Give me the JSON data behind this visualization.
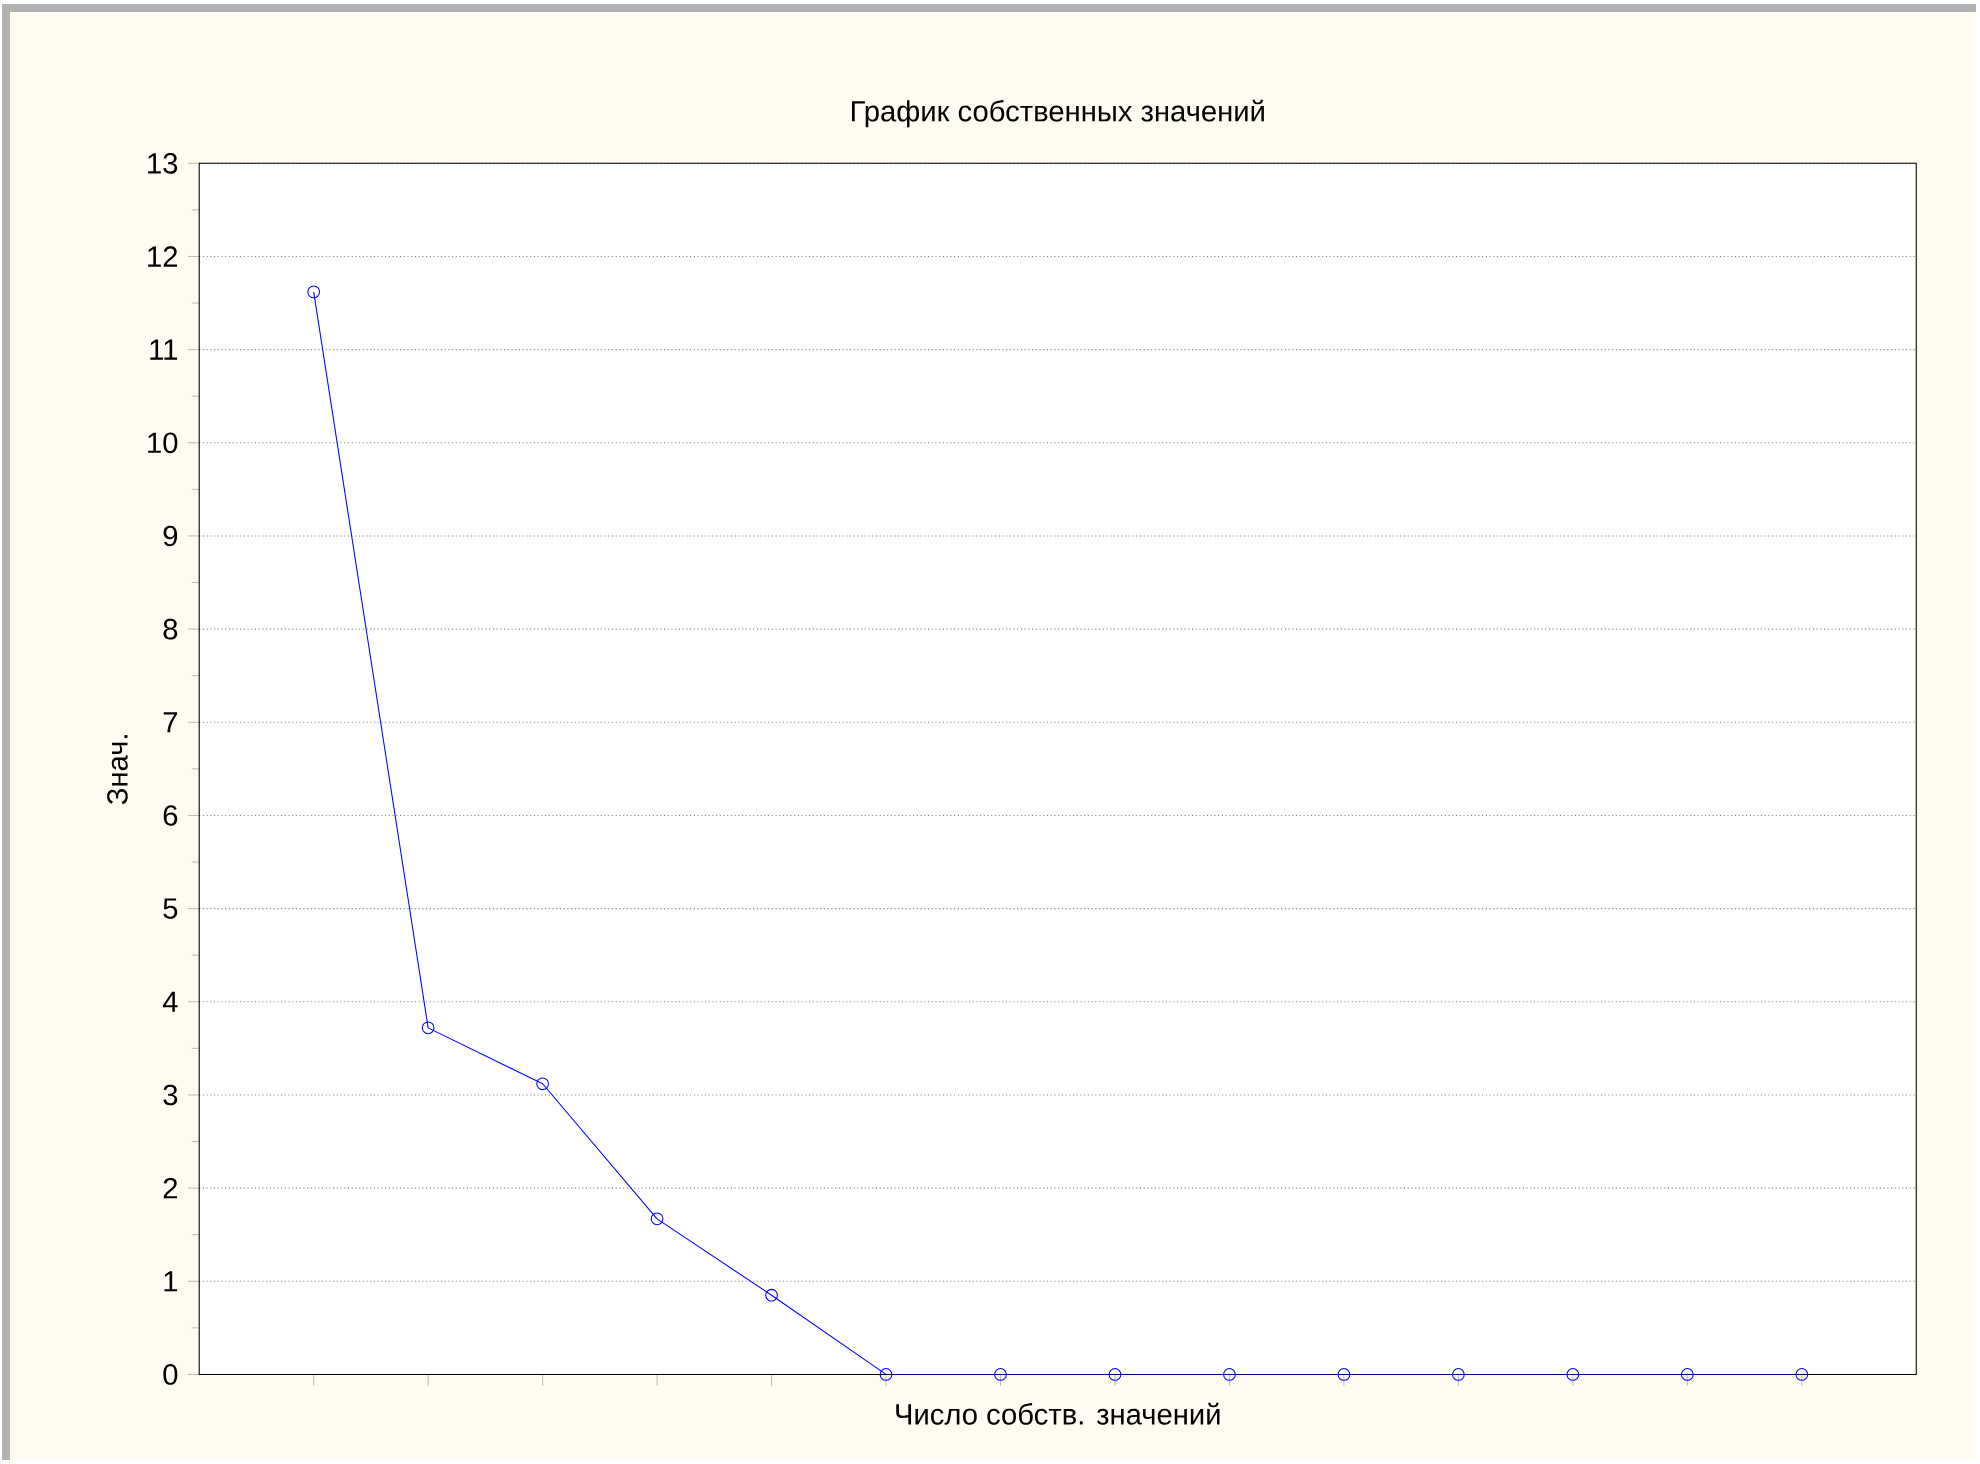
{
  "chart_data": {
    "type": "line",
    "title": "График собственных значений",
    "xlabel": "Число собств. значений",
    "ylabel": "Знач.",
    "categories": [
      null,
      null,
      null,
      null,
      null,
      null,
      null,
      null,
      null,
      null,
      null,
      null,
      null,
      null
    ],
    "series": [
      {
        "color": "#0000ff",
        "values": [
          11.62,
          3.72,
          3.12,
          1.67,
          0.85,
          0,
          0,
          0,
          0,
          0,
          0,
          0,
          0,
          0
        ]
      }
    ],
    "ylim": [
      0,
      13
    ],
    "yticks": [
      0,
      1,
      2,
      3,
      4,
      5,
      6,
      7,
      8,
      9,
      10,
      11,
      12,
      13
    ],
    "grid": "y",
    "marker": "circle",
    "line_style": "solid"
  }
}
